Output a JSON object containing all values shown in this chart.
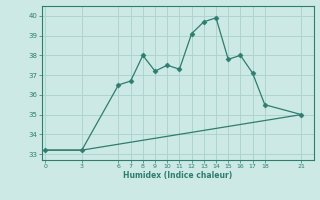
{
  "line1_x": [
    0,
    3,
    6,
    7,
    8,
    9,
    10,
    11,
    12,
    13,
    14,
    15,
    16,
    17,
    18,
    21
  ],
  "line1_y": [
    33.2,
    33.2,
    36.5,
    36.7,
    38.0,
    37.2,
    37.5,
    37.3,
    39.1,
    39.7,
    39.9,
    37.8,
    38.0,
    37.1,
    35.5,
    35.0
  ],
  "line2_x": [
    0,
    3,
    21
  ],
  "line2_y": [
    33.2,
    33.2,
    35.0
  ],
  "line_color": "#2e7d6e",
  "bg_color": "#cce9e5",
  "grid_color": "#aed4cf",
  "xlabel": "Humidex (Indice chaleur)",
  "xticks": [
    0,
    3,
    6,
    7,
    8,
    9,
    10,
    11,
    12,
    13,
    14,
    15,
    16,
    17,
    18,
    21
  ],
  "yticks": [
    33,
    34,
    35,
    36,
    37,
    38,
    39,
    40
  ],
  "ylim": [
    32.7,
    40.5
  ],
  "xlim": [
    -0.3,
    22
  ]
}
